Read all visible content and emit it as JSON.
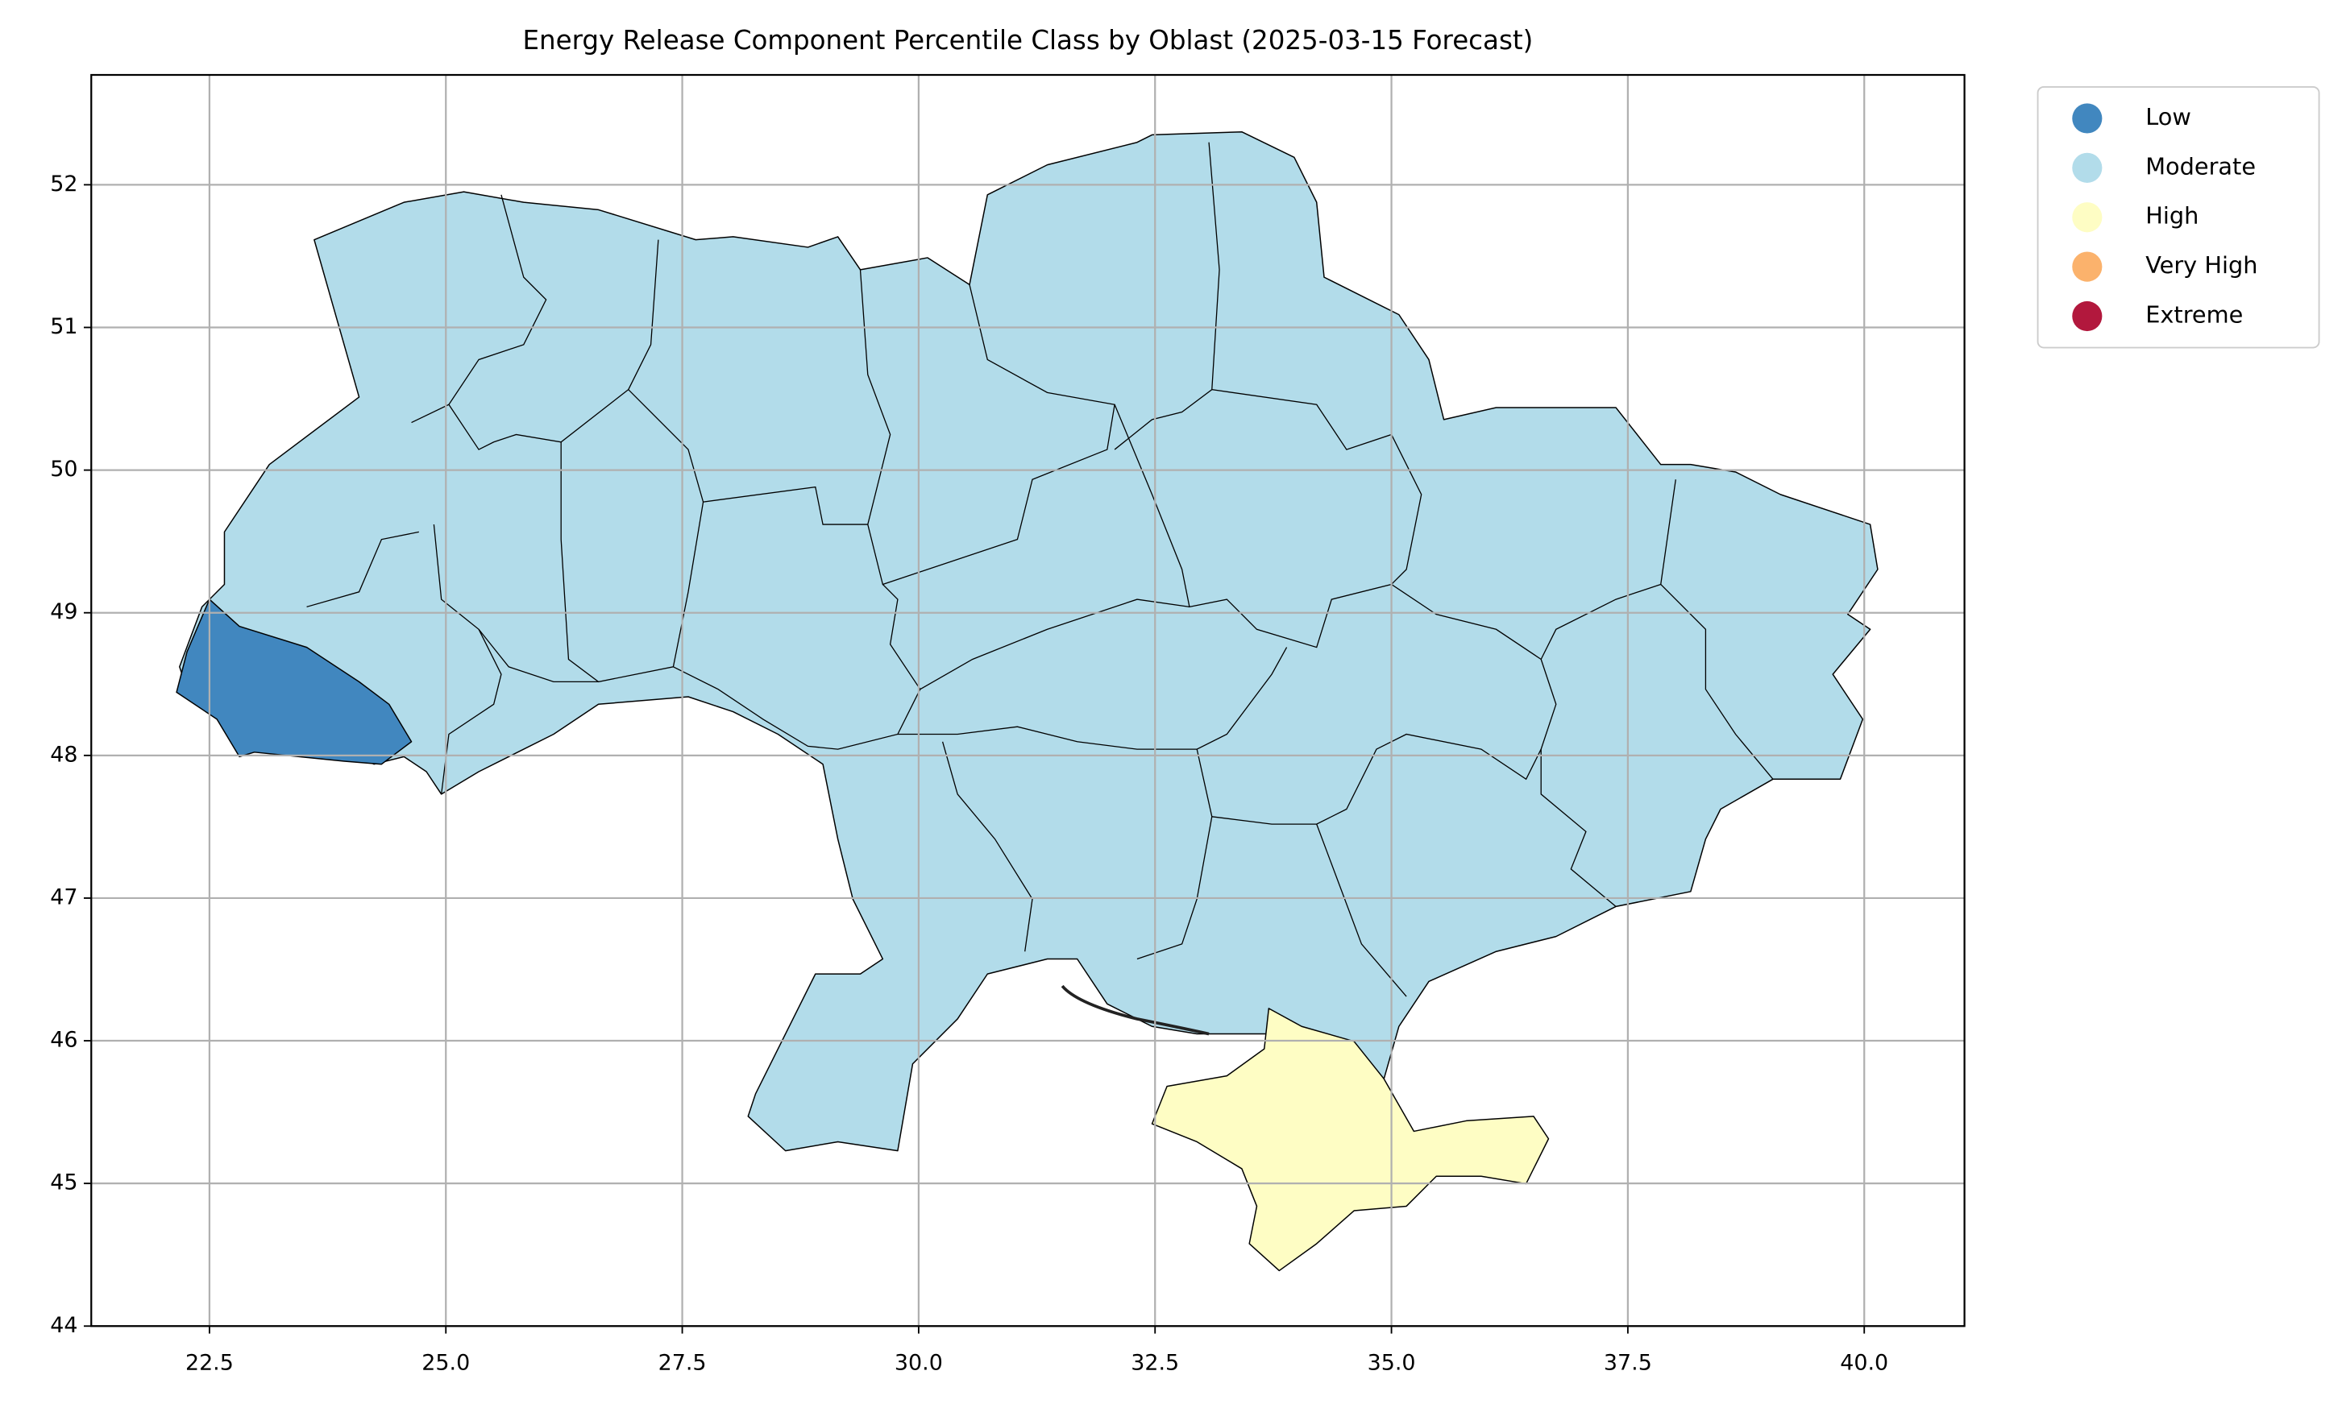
{
  "chart_data": {
    "type": "map",
    "title": "Energy Release Component Percentile Class by Oblast (2025-03-15 Forecast)",
    "xlim": [
      21.25,
      41.06
    ],
    "ylim": [
      44,
      52.77
    ],
    "xticks": [
      22.5,
      {
        "value": 25,
        "label": "25.0"
      },
      27.5,
      {
        "value": 30,
        "label": "30.0"
      },
      32.5,
      {
        "value": 35,
        "label": "35.0"
      },
      37.5,
      {
        "value": 40,
        "label": "40.0"
      }
    ],
    "yticks": [
      44,
      45,
      46,
      47,
      48,
      49,
      50,
      51,
      52
    ],
    "grid": true,
    "legend_loc": "upper right outside",
    "legend": [
      {
        "label": "Low",
        "color": "#4187bf"
      },
      {
        "label": "Moderate",
        "color": "#b2dcea"
      },
      {
        "label": "High",
        "color": "#fefdc4"
      },
      {
        "label": "Very High",
        "color": "#fbb26c"
      },
      {
        "label": "Extreme",
        "color": "#b2183d"
      }
    ]
  }
}
